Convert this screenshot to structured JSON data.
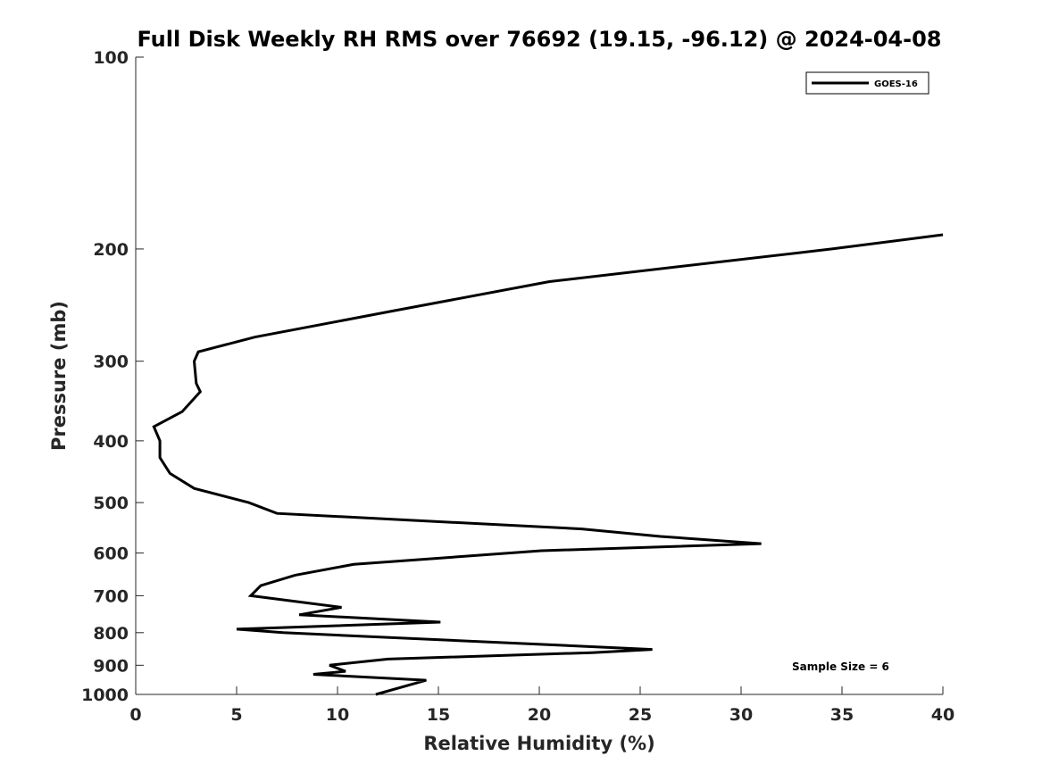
{
  "chart_data": {
    "type": "line",
    "title": "Full Disk Weekly RH RMS over 76692 (19.15, -96.12) @ 2024-04-08",
    "xlabel": "Relative Humidity (%)",
    "ylabel": "Pressure (mb)",
    "xlim": [
      0,
      40
    ],
    "ylim": [
      100,
      1000
    ],
    "y_scale": "log",
    "y_reversed": true,
    "xticks": [
      0,
      5,
      10,
      15,
      20,
      25,
      30,
      35,
      40
    ],
    "yticks": [
      100,
      200,
      300,
      400,
      500,
      600,
      700,
      800,
      900,
      1000
    ],
    "grid": false,
    "legend": "top-right",
    "annotation": "Sample Size = 6",
    "series": [
      {
        "name": "GOES-16",
        "color": "#000000",
        "points": [
          [
            40.0,
            190
          ],
          [
            34.5,
            200
          ],
          [
            20.5,
            225
          ],
          [
            12.8,
            250
          ],
          [
            5.9,
            275
          ],
          [
            3.1,
            290
          ],
          [
            2.9,
            300
          ],
          [
            3.0,
            325
          ],
          [
            3.2,
            335
          ],
          [
            2.3,
            360
          ],
          [
            0.9,
            380
          ],
          [
            1.2,
            400
          ],
          [
            1.2,
            425
          ],
          [
            1.7,
            450
          ],
          [
            2.9,
            475
          ],
          [
            5.6,
            500
          ],
          [
            7.0,
            520
          ],
          [
            22.1,
            550
          ],
          [
            26.0,
            565
          ],
          [
            31.0,
            580
          ],
          [
            20.1,
            595
          ],
          [
            10.8,
            625
          ],
          [
            7.9,
            650
          ],
          [
            6.2,
            675
          ],
          [
            5.7,
            700
          ],
          [
            10.2,
            730
          ],
          [
            8.1,
            750
          ],
          [
            15.1,
            770
          ],
          [
            5.0,
            790
          ],
          [
            7.3,
            800
          ],
          [
            25.6,
            850
          ],
          [
            22.6,
            860
          ],
          [
            12.5,
            880
          ],
          [
            9.6,
            900
          ],
          [
            10.4,
            920
          ],
          [
            8.8,
            930
          ],
          [
            14.4,
            950
          ],
          [
            11.9,
            1000
          ]
        ]
      }
    ]
  }
}
